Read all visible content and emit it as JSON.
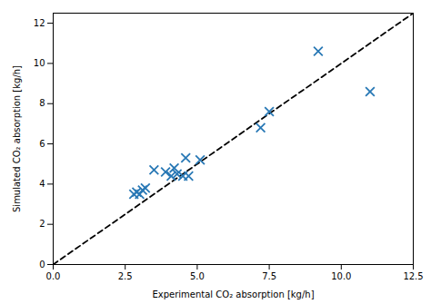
{
  "chart_data": {
    "type": "scatter",
    "xlabel": "Experimental CO₂ absorption [kg/h]",
    "ylabel": "Simulated CO₂ absorption [kg/h]",
    "xlim": [
      0.0,
      12.5
    ],
    "ylim": [
      0.0,
      12.5
    ],
    "xticks": [
      {
        "value": 0.0,
        "label": "0.0"
      },
      2.5,
      {
        "value": 5.0,
        "label": "5.0"
      },
      {
        "value": 7.5,
        "label": "7.5"
      },
      {
        "value": 10.0,
        "label": "10.0"
      },
      12.5
    ],
    "yticks": [
      0,
      2,
      4,
      6,
      8,
      10,
      12
    ],
    "series": [
      {
        "type": "line",
        "color": "black",
        "line_style": "dashed",
        "x": [
          0.0,
          12.5
        ],
        "values": [
          0.0,
          12.5
        ]
      },
      {
        "type": "scatter",
        "color": "#2878b5",
        "marker": "x",
        "x": [
          2.8,
          2.9,
          3.0,
          3.1,
          3.2,
          3.5,
          3.9,
          4.1,
          4.2,
          4.3,
          4.5,
          4.6,
          4.7,
          5.1,
          7.2,
          7.5,
          9.2,
          11.0
        ],
        "values": [
          3.5,
          3.6,
          3.5,
          3.7,
          3.8,
          4.7,
          4.6,
          4.4,
          4.8,
          4.5,
          4.4,
          5.3,
          4.4,
          5.2,
          6.8,
          7.6,
          10.6,
          8.6
        ]
      }
    ]
  }
}
